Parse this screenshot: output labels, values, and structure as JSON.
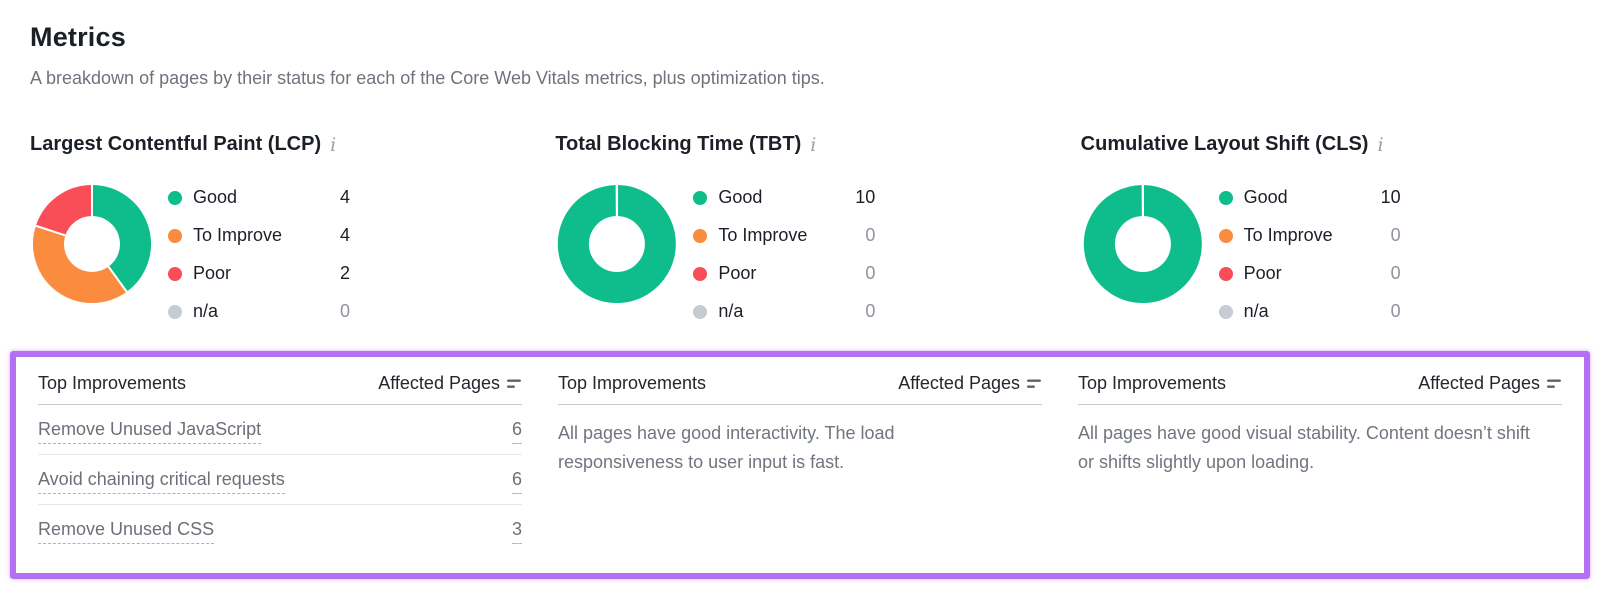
{
  "page": {
    "title": "Metrics",
    "subtitle": "A breakdown of pages by their status for each of the Core Web Vitals metrics, plus optimization tips."
  },
  "icons": {
    "info": "i"
  },
  "colors": {
    "good": "#0fbd8c",
    "to_improve": "#fa8b3f",
    "poor": "#f94d57",
    "na": "#c7cbd3",
    "highlight": "#b470f5"
  },
  "chart_data": [
    {
      "type": "pie",
      "subtype": "donut",
      "title": "Largest Contentful Paint (LCP)",
      "categories": [
        "Good",
        "To Improve",
        "Poor",
        "n/a"
      ],
      "values": [
        4,
        4,
        2,
        0
      ],
      "colors": [
        "#0fbd8c",
        "#fa8b3f",
        "#f94d57",
        "#c7cbd3"
      ],
      "legend_position": "right"
    },
    {
      "type": "pie",
      "subtype": "donut",
      "title": "Total Blocking Time (TBT)",
      "categories": [
        "Good",
        "To Improve",
        "Poor",
        "n/a"
      ],
      "values": [
        10,
        0,
        0,
        0
      ],
      "colors": [
        "#0fbd8c",
        "#fa8b3f",
        "#f94d57",
        "#c7cbd3"
      ],
      "legend_position": "right"
    },
    {
      "type": "pie",
      "subtype": "donut",
      "title": "Cumulative Layout Shift (CLS)",
      "categories": [
        "Good",
        "To Improve",
        "Poor",
        "n/a"
      ],
      "values": [
        10,
        0,
        0,
        0
      ],
      "colors": [
        "#0fbd8c",
        "#fa8b3f",
        "#f94d57",
        "#c7cbd3"
      ],
      "legend_position": "right"
    }
  ],
  "improvements": {
    "header_left": "Top Improvements",
    "header_right": "Affected Pages",
    "lcp": {
      "rows": [
        {
          "label": "Remove Unused JavaScript",
          "count": "6"
        },
        {
          "label": "Avoid chaining critical requests",
          "count": "6"
        },
        {
          "label": "Remove Unused CSS",
          "count": "3"
        }
      ]
    },
    "tbt": {
      "message": "All pages have good interactivity. The load responsiveness to user input is fast."
    },
    "cls": {
      "message": "All pages have good visual stability. Content doesn’t shift or shifts slightly upon loading."
    }
  }
}
